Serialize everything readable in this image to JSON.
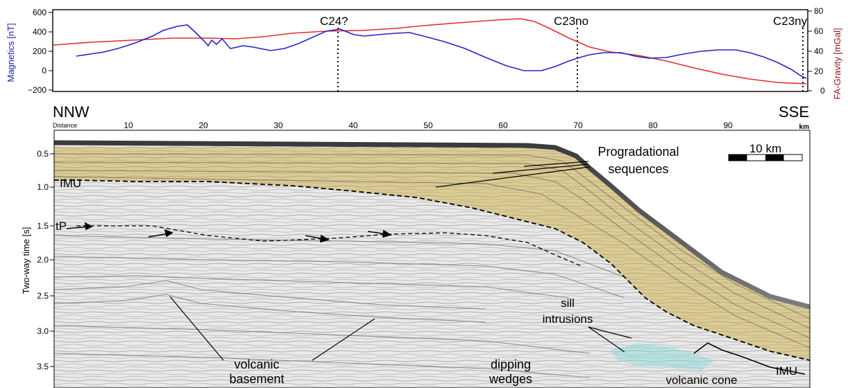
{
  "top_panel": {
    "left_axis_label": "Magnetics [nT]",
    "right_axis_label": "FA-Gravity [mGal]",
    "left_ticks": [
      "600",
      "400",
      "200",
      "0",
      "−200"
    ],
    "right_ticks": [
      "80",
      "60",
      "40",
      "20",
      "0"
    ],
    "left_color": "#1c1ca8",
    "right_color": "#8b1a1a",
    "markers": [
      "C24?",
      "C23no",
      "C23ny"
    ]
  },
  "profile": {
    "left_end": "NNW",
    "right_end": "SSE",
    "distance_label": "Distance",
    "distance_unit": "km",
    "distance_ticks": [
      "10",
      "20",
      "30",
      "40",
      "50",
      "60",
      "70",
      "80",
      "90"
    ]
  },
  "seismic": {
    "y_axis_label": "Two-way time [s]",
    "y_ticks": [
      "0.5",
      "1.0",
      "1.5",
      "2.0",
      "2.5",
      "3.0",
      "3.5"
    ],
    "scale_bar": "10 km",
    "horizon_imu": "IMU",
    "horizon_tp": "tP",
    "label_prog_1": "Progradational",
    "label_prog_2": "sequences",
    "label_sill_1": "sill",
    "label_sill_2": "intrusions",
    "label_volc_1": "volcanic",
    "label_volc_2": "basement",
    "label_dip_1": "dipping",
    "label_dip_2": "wedges",
    "label_cone": "volcanic cone",
    "colors": {
      "sediment_fill": "#c9a227",
      "sill_fill": "#7fd6d6"
    }
  }
}
